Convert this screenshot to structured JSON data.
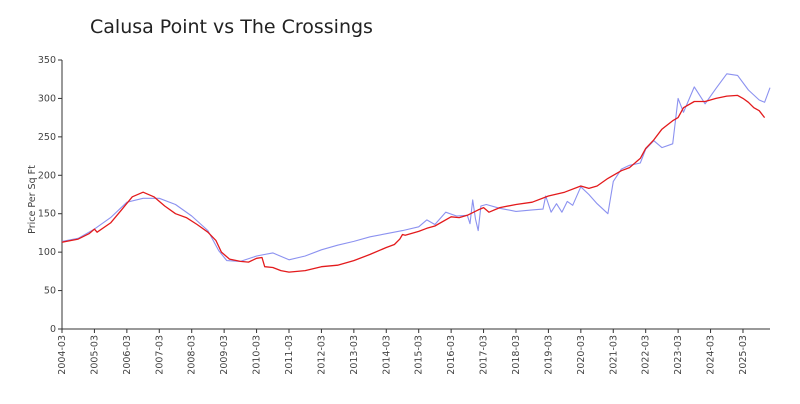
{
  "chart_data": {
    "type": "line",
    "title": "Calusa Point vs The Crossings",
    "xlabel": "",
    "ylabel": "Price Per Sq Ft",
    "ylim": [
      0,
      350
    ],
    "yticks": [
      0,
      50,
      100,
      150,
      200,
      250,
      300,
      350
    ],
    "xlim": [
      "2004-03",
      "2026-01"
    ],
    "xticks": [
      "2004-03",
      "2005-03",
      "2006-03",
      "2007-03",
      "2008-03",
      "2009-03",
      "2010-03",
      "2011-03",
      "2012-03",
      "2013-03",
      "2014-03",
      "2015-03",
      "2016-03",
      "2017-03",
      "2018-03",
      "2019-03",
      "2020-03",
      "2021-03",
      "2022-03",
      "2023-03",
      "2024-03",
      "2025-03"
    ],
    "grid": false,
    "legend": "none",
    "series": [
      {
        "color": "#e31a1c",
        "points": [
          [
            "2004-03",
            113
          ],
          [
            "2004-09",
            117
          ],
          [
            "2005-01",
            124
          ],
          [
            "2005-03",
            130
          ],
          [
            "2005-04",
            126
          ],
          [
            "2005-09",
            138
          ],
          [
            "2006-01",
            155
          ],
          [
            "2006-05",
            172
          ],
          [
            "2006-09",
            178
          ],
          [
            "2007-01",
            172
          ],
          [
            "2007-05",
            160
          ],
          [
            "2007-09",
            150
          ],
          [
            "2008-01",
            145
          ],
          [
            "2008-05",
            136
          ],
          [
            "2008-09",
            126
          ],
          [
            "2008-12",
            115
          ],
          [
            "2009-02",
            100
          ],
          [
            "2009-05",
            91
          ],
          [
            "2009-09",
            88
          ],
          [
            "2009-12",
            87
          ],
          [
            "2010-03",
            92
          ],
          [
            "2010-05",
            93
          ],
          [
            "2010-06",
            81
          ],
          [
            "2010-09",
            80
          ],
          [
            "2010-12",
            76
          ],
          [
            "2011-03",
            74
          ],
          [
            "2011-09",
            76
          ],
          [
            "2012-03",
            81
          ],
          [
            "2012-09",
            83
          ],
          [
            "2013-03",
            89
          ],
          [
            "2013-09",
            97
          ],
          [
            "2014-03",
            106
          ],
          [
            "2014-06",
            110
          ],
          [
            "2014-08",
            117
          ],
          [
            "2014-09",
            123
          ],
          [
            "2014-10",
            122
          ],
          [
            "2015-03",
            127
          ],
          [
            "2015-06",
            131
          ],
          [
            "2015-09",
            134
          ],
          [
            "2016-03",
            146
          ],
          [
            "2016-06",
            145
          ],
          [
            "2016-09",
            148
          ],
          [
            "2017-01",
            155
          ],
          [
            "2017-03",
            158
          ],
          [
            "2017-05",
            152
          ],
          [
            "2017-09",
            158
          ],
          [
            "2018-03",
            162
          ],
          [
            "2018-09",
            165
          ],
          [
            "2019-03",
            173
          ],
          [
            "2019-09",
            178
          ],
          [
            "2020-03",
            186
          ],
          [
            "2020-06",
            183
          ],
          [
            "2020-09",
            186
          ],
          [
            "2021-01",
            196
          ],
          [
            "2021-03",
            200
          ],
          [
            "2021-06",
            206
          ],
          [
            "2021-09",
            210
          ],
          [
            "2022-01",
            222
          ],
          [
            "2022-03",
            235
          ],
          [
            "2022-06",
            246
          ],
          [
            "2022-09",
            260
          ],
          [
            "2023-01",
            271
          ],
          [
            "2023-03",
            275
          ],
          [
            "2023-05",
            288
          ],
          [
            "2023-09",
            296
          ],
          [
            "2024-01",
            296
          ],
          [
            "2024-05",
            300
          ],
          [
            "2024-09",
            303
          ],
          [
            "2025-01",
            304
          ],
          [
            "2025-03",
            300
          ],
          [
            "2025-05",
            295
          ],
          [
            "2025-07",
            288
          ],
          [
            "2025-09",
            284
          ],
          [
            "2025-11",
            275
          ]
        ]
      },
      {
        "color": "#8c92f0",
        "points": [
          [
            "2004-03",
            114
          ],
          [
            "2004-09",
            118
          ],
          [
            "2005-03",
            130
          ],
          [
            "2005-09",
            145
          ],
          [
            "2006-03",
            165
          ],
          [
            "2006-09",
            170
          ],
          [
            "2007-03",
            170
          ],
          [
            "2007-09",
            162
          ],
          [
            "2008-03",
            147
          ],
          [
            "2008-09",
            128
          ],
          [
            "2009-01",
            102
          ],
          [
            "2009-04",
            89
          ],
          [
            "2009-09",
            88
          ],
          [
            "2010-03",
            95
          ],
          [
            "2010-09",
            99
          ],
          [
            "2011-03",
            90
          ],
          [
            "2011-09",
            95
          ],
          [
            "2012-03",
            103
          ],
          [
            "2012-09",
            109
          ],
          [
            "2013-03",
            114
          ],
          [
            "2013-09",
            120
          ],
          [
            "2014-03",
            124
          ],
          [
            "2014-09",
            128
          ],
          [
            "2015-03",
            133
          ],
          [
            "2015-06",
            142
          ],
          [
            "2015-09",
            136
          ],
          [
            "2016-01",
            152
          ],
          [
            "2016-05",
            147
          ],
          [
            "2016-09",
            148
          ],
          [
            "2016-10",
            137
          ],
          [
            "2016-11",
            168
          ],
          [
            "2016-12",
            143
          ],
          [
            "2017-01",
            128
          ],
          [
            "2017-02",
            160
          ],
          [
            "2017-04",
            162
          ],
          [
            "2017-09",
            157
          ],
          [
            "2018-03",
            153
          ],
          [
            "2018-09",
            155
          ],
          [
            "2019-01",
            156
          ],
          [
            "2019-02",
            173
          ],
          [
            "2019-04",
            152
          ],
          [
            "2019-06",
            163
          ],
          [
            "2019-08",
            152
          ],
          [
            "2019-10",
            166
          ],
          [
            "2019-12",
            161
          ],
          [
            "2020-03",
            185
          ],
          [
            "2020-06",
            175
          ],
          [
            "2020-09",
            163
          ],
          [
            "2021-01",
            150
          ],
          [
            "2021-03",
            192
          ],
          [
            "2021-06",
            208
          ],
          [
            "2021-09",
            213
          ],
          [
            "2022-01",
            216
          ],
          [
            "2022-03",
            234
          ],
          [
            "2022-06",
            245
          ],
          [
            "2022-09",
            236
          ],
          [
            "2023-01",
            241
          ],
          [
            "2023-03",
            300
          ],
          [
            "2023-05",
            282
          ],
          [
            "2023-09",
            315
          ],
          [
            "2024-01",
            293
          ],
          [
            "2024-05",
            313
          ],
          [
            "2024-09",
            332
          ],
          [
            "2025-01",
            330
          ],
          [
            "2025-05",
            311
          ],
          [
            "2025-09",
            298
          ],
          [
            "2025-11",
            295
          ],
          [
            "2026-01",
            314
          ]
        ]
      }
    ]
  }
}
